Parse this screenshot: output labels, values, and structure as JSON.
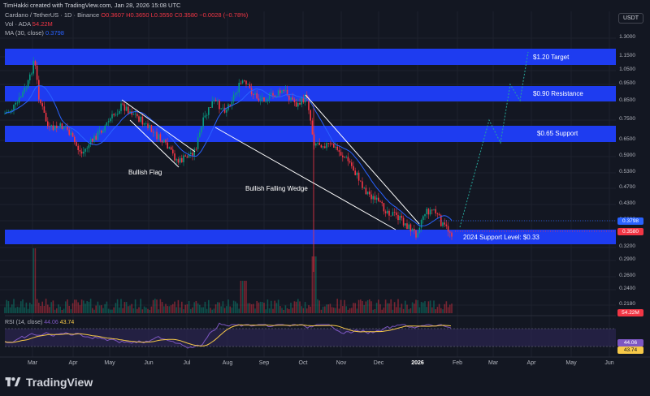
{
  "header": {
    "attribution": "TimHakki created with TradingView.com, Jan 28, 2026 15:08 UTC",
    "symbol_line": {
      "symbol": "Cardano / TetherUS · 1D · Binance",
      "o": "O0.3607",
      "h": "H0.3650",
      "l": "L0.3550",
      "c": "C0.3580",
      "chg": "−0.0028 (−0.78%)"
    },
    "vol_line": {
      "label": "Vol · ADA",
      "value": "54.22M"
    },
    "ma_line": {
      "label": "MA (30, close)",
      "value": "0.3798"
    }
  },
  "currency": "USDT",
  "price_axis": [
    "1.3000",
    "1.1500",
    "1.0500",
    "0.9500",
    "0.8500",
    "0.7500",
    "0.6500",
    "0.5900",
    "0.5300",
    "0.4700",
    "0.4300",
    "0.3900",
    "0.3200",
    "0.2900",
    "0.2600",
    "0.2400",
    "0.2180"
  ],
  "price_tags": {
    "ma": "0.3798",
    "last": "0.3580",
    "volume": "54.22M",
    "rsi": "44.06",
    "rsi_ma": "43.74"
  },
  "zones": [
    {
      "label": "$1.20 Target"
    },
    {
      "label": "$0.90 Resistance"
    },
    {
      "label": "$0.65 Support"
    },
    {
      "label": "2024 Support Level: $0.33"
    }
  ],
  "annotations": {
    "flag": "Bullish Flag",
    "wedge": "Bullish Falling Wedge"
  },
  "time_axis": [
    "Mar",
    "Apr",
    "May",
    "Jun",
    "Jul",
    "Aug",
    "Sep",
    "Oct",
    "Nov",
    "Dec",
    "2026",
    "Feb",
    "Mar",
    "Apr",
    "May",
    "Jun"
  ],
  "rsi": {
    "label": "RSI (14, close)",
    "value": "44.06",
    "ma_value": "43.74"
  },
  "brand": "TradingView",
  "colors": {
    "zone": "#1e3cf0",
    "up": "#089981",
    "down": "#f23645",
    "ma": "#2962ff",
    "rsi": "#7e57c2",
    "rsi_ma": "#f7c948"
  },
  "chart_data": {
    "type": "candlestick",
    "series": [
      {
        "name": "Cardano / TetherUS",
        "close_start": 0.68,
        "close_end": 0.358
      },
      {
        "name": "MA (30, close)",
        "last": 0.3798
      }
    ]
  }
}
